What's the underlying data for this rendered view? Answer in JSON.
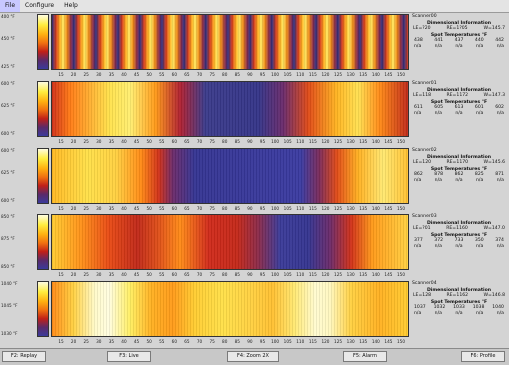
{
  "menu": [
    {
      "label": "File"
    },
    {
      "label": "Configure"
    },
    {
      "label": "Help"
    }
  ],
  "axis_ticks": [
    "15",
    "20",
    "25",
    "30",
    "35",
    "40",
    "45",
    "50",
    "55",
    "60",
    "65",
    "70",
    "75",
    "80",
    "85",
    "90",
    "95",
    "100",
    "105",
    "110",
    "115",
    "120",
    "125",
    "130",
    "135",
    "140",
    "145",
    "150"
  ],
  "scanners": [
    {
      "name": "Scanner00",
      "scale": [
        "400 °F",
        "450 °F",
        "425 °F"
      ],
      "dim_title": "Dimensional Information",
      "dims": [
        "LE=?20",
        "RE=1?05",
        "W=145.7"
      ],
      "spot_title": "Spot Temperatures °F",
      "spots": [
        "438",
        "441",
        "437",
        "440",
        "442"
      ],
      "spots2": [
        "n/a",
        "n/a",
        "n/a",
        "n/a",
        "n/a"
      ]
    },
    {
      "name": "Scanner01",
      "scale": [
        "600 °F",
        "625 °F",
        "600 °F"
      ],
      "dim_title": "Dimensional Information",
      "dims": [
        "LE=118",
        "RE=1172",
        "W=147.3"
      ],
      "spot_title": "Spot Temperatures °F",
      "spots": [
        "611",
        "605",
        "613",
        "601",
        "602"
      ],
      "spots2": [
        "n/a",
        "n/a",
        "n/a",
        "n/a",
        "n/a"
      ]
    },
    {
      "name": "Scanner02",
      "scale": [
        "600 °F",
        "625 °F",
        "600 °F"
      ],
      "dim_title": "Dimensional Information",
      "dims": [
        "LE=120",
        "RE=1170",
        "W=145.6"
      ],
      "spot_title": "Spot Temperatures °F",
      "spots": [
        "862",
        "878",
        "862",
        "825",
        "871"
      ],
      "spots2": [
        "n/a",
        "n/a",
        "n/a",
        "n/a",
        "n/a"
      ]
    },
    {
      "name": "Scanner03",
      "scale": [
        "850 °F",
        "875 °F",
        "850 °F"
      ],
      "dim_title": "Dimensional Information",
      "dims": [
        "LE=?01",
        "RE=1160",
        "W=147.0"
      ],
      "spot_title": "Spot Temperatures °F",
      "spots": [
        "377",
        "372",
        "733",
        "350",
        "374"
      ],
      "spots2": [
        "n/a",
        "n/a",
        "n/a",
        "n/a",
        "n/a"
      ]
    },
    {
      "name": "Scanner04",
      "scale": [
        "1040 °F",
        "1045 °F",
        "1030 °F"
      ],
      "dim_title": "Dimensional Information",
      "dims": [
        "LE=128",
        "RE=1162",
        "W=146.8"
      ],
      "spot_title": "Spot Temperatures °F",
      "spots": [
        "1037",
        "1032",
        "1033",
        "1038",
        "1040"
      ],
      "spots2": [
        "n/a",
        "n/a",
        "n/a",
        "n/a",
        "n/a"
      ]
    }
  ],
  "fkeys": [
    {
      "label": "F2: Replay"
    },
    {
      "label": "F3: Live"
    },
    {
      "label": "F4: Zoom 2X"
    },
    {
      "label": "F5: Alarm"
    },
    {
      "label": "F6: Profile"
    }
  ]
}
